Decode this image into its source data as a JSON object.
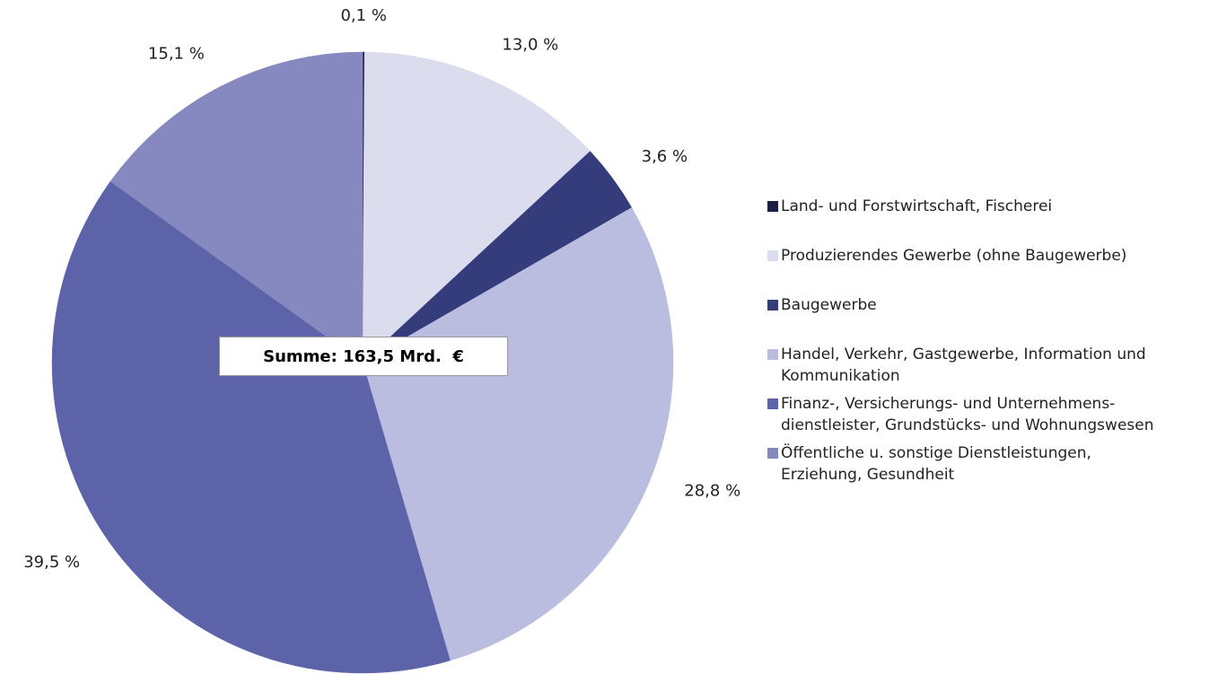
{
  "chart_data": {
    "type": "pie",
    "annotation": "Summe: 163,5 Mrd.  €",
    "series": [
      {
        "name": "Land- und Forstwirtschaft, Fischerei",
        "color": "#1c1f45",
        "values": [
          0.1
        ],
        "value_labels": [
          "0,1 %"
        ]
      },
      {
        "name": "Produzierendes Gewerbe (ohne Baugewerbe)",
        "color": "#dcdcef",
        "values": [
          13.0
        ],
        "value_labels": [
          "13,0 %"
        ]
      },
      {
        "name": "Baugewerbe",
        "color": "#353c7c",
        "values": [
          3.6
        ],
        "value_labels": [
          "3,6 %"
        ]
      },
      {
        "name": "Handel, Verkehr, Gastgewerbe, Information und Kommunikation",
        "color": "#babde0",
        "values": [
          28.8
        ],
        "value_labels": [
          "28,8 %"
        ]
      },
      {
        "name": "Finanz-, Versicherungs- und Unternehmens-dienstleister, Grundstücks- und Wohnungswesen",
        "color": "#5c63a9",
        "values": [
          39.5
        ],
        "value_labels": [
          "39,5 %"
        ]
      },
      {
        "name": "Öffentliche u. sonstige Dienstleistungen, Erziehung, Gesundheit",
        "color": "#8589c0",
        "values": [
          15.1
        ],
        "value_labels": [
          "15,1 %"
        ]
      }
    ],
    "legend": "right"
  }
}
